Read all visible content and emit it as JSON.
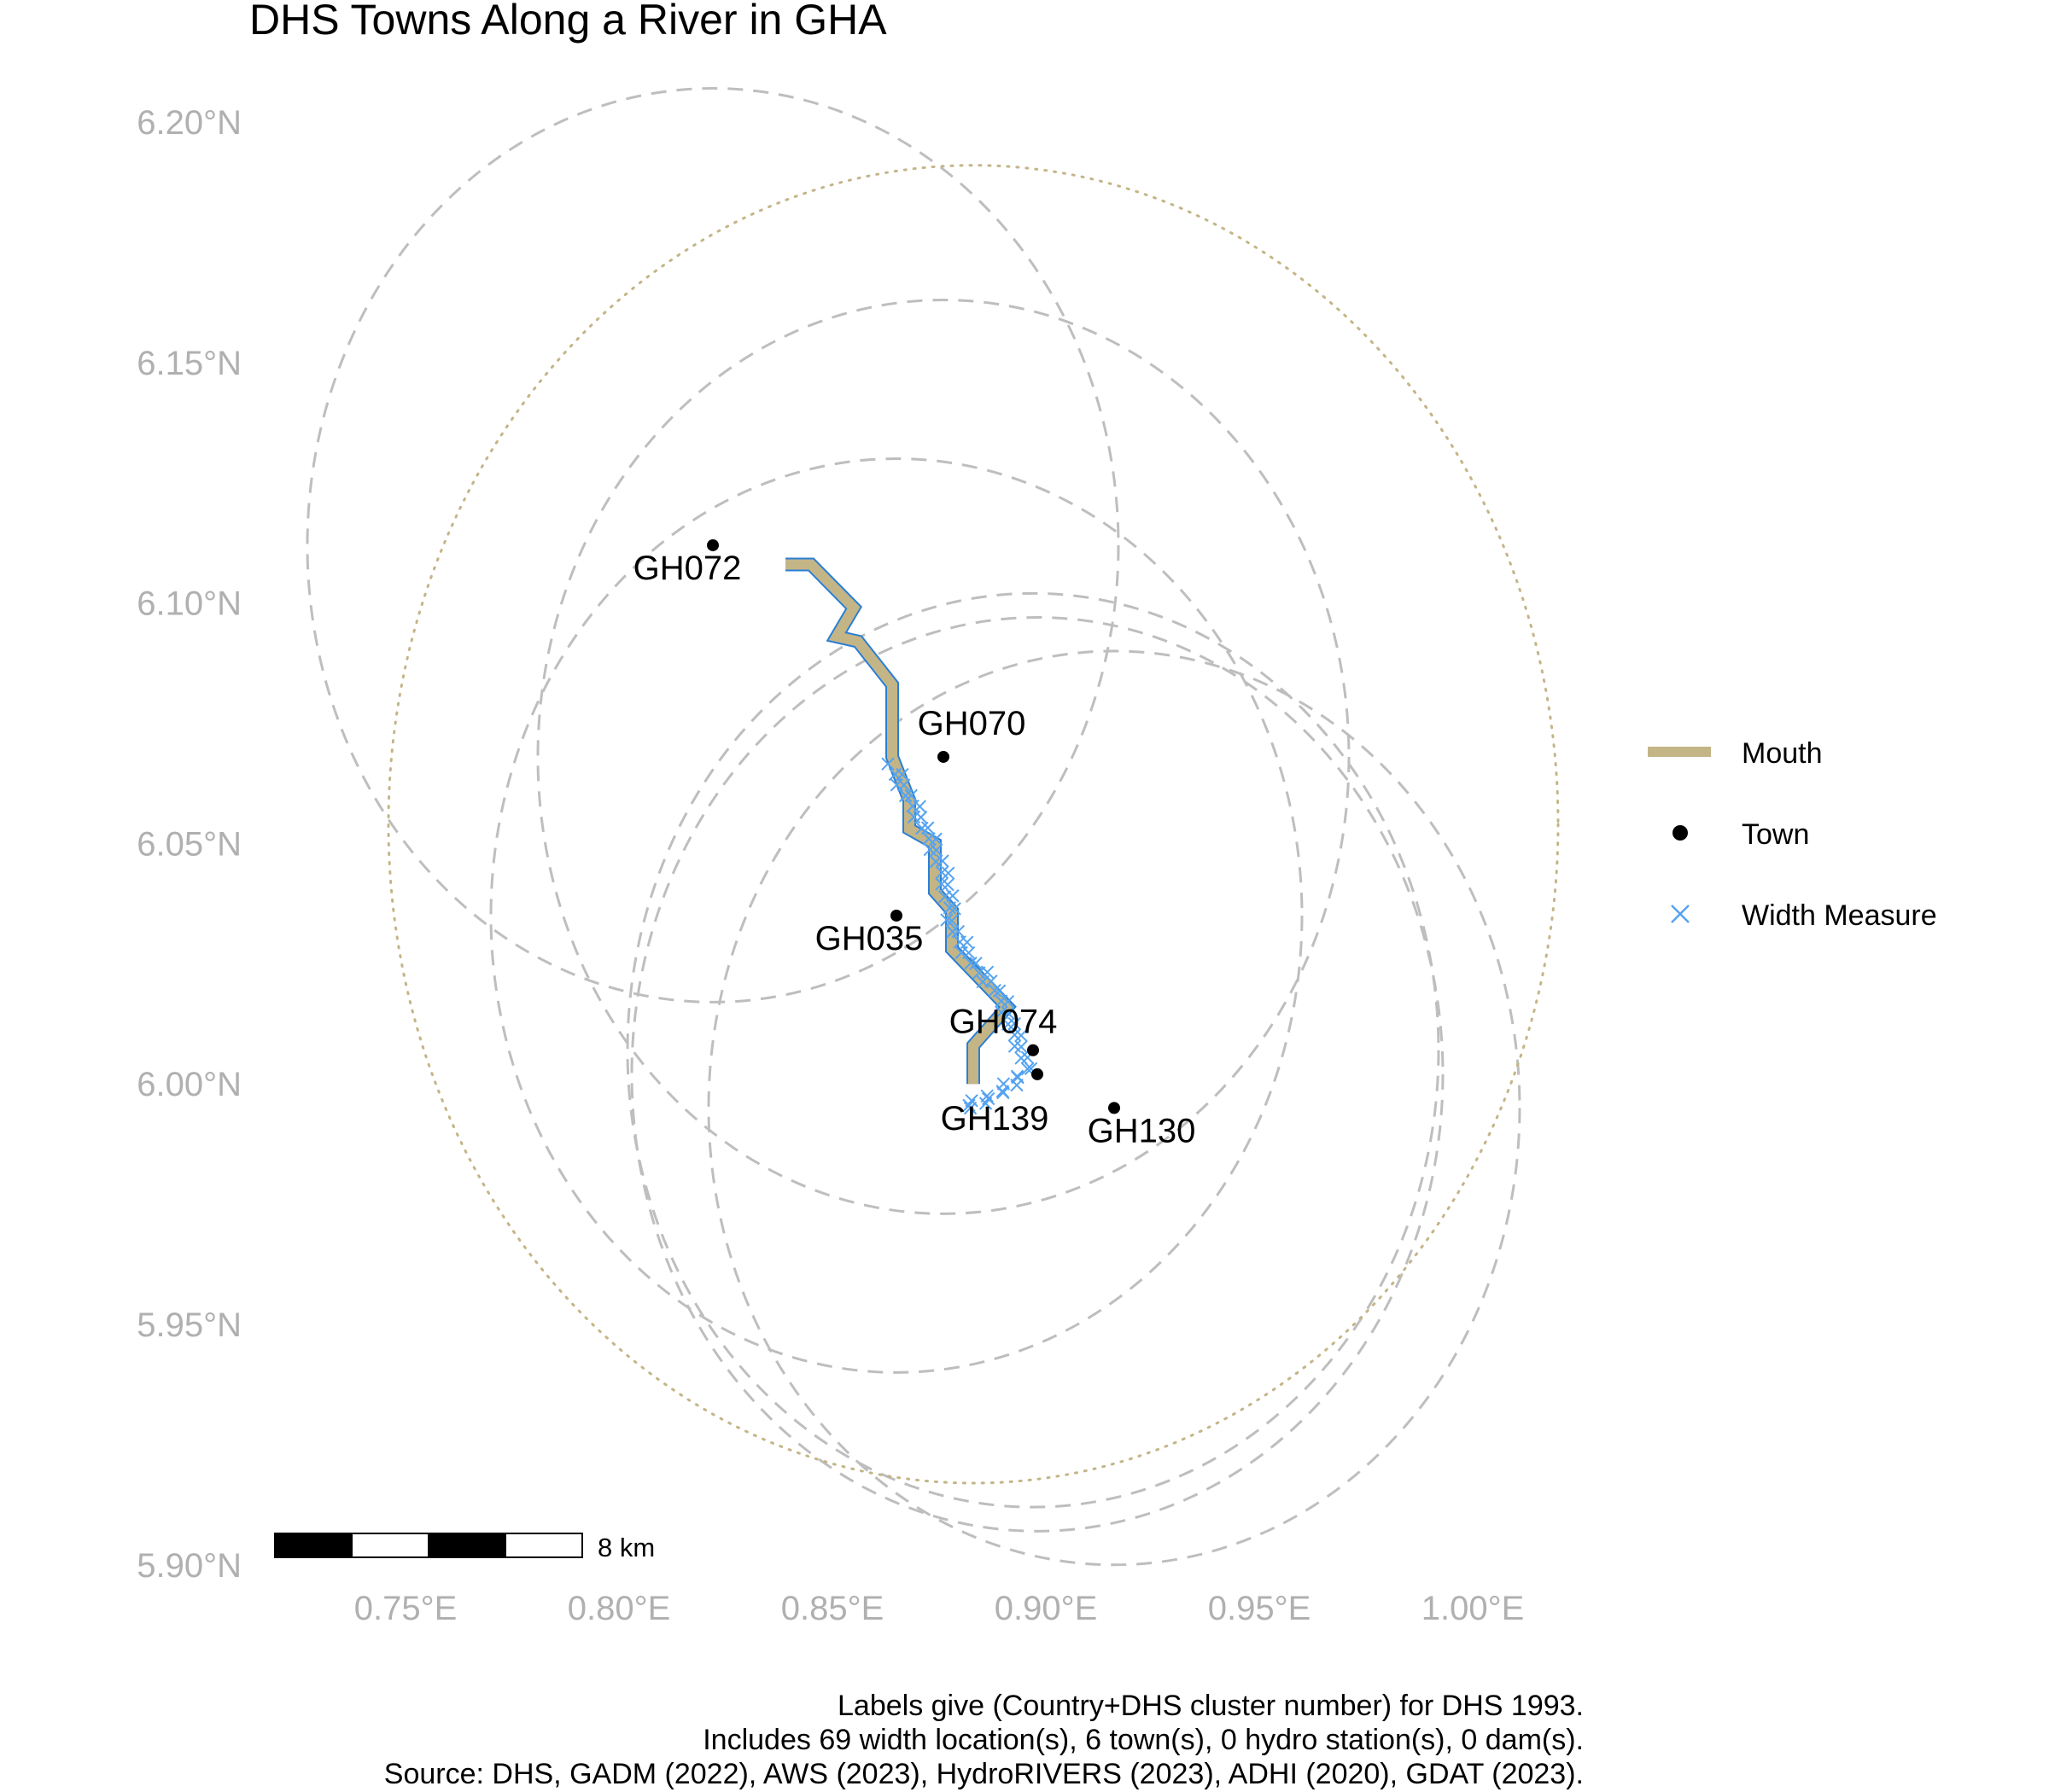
{
  "title": "DHS Towns Along a River in GHA",
  "map": {
    "type": "map",
    "x_axis_labels": [
      "0.75°E",
      "0.80°E",
      "0.85°E",
      "0.90°E",
      "0.95°E",
      "1.00°E"
    ],
    "x_ticks": [
      0.75,
      0.8,
      0.85,
      0.9,
      0.95,
      1.0
    ],
    "y_axis_labels": [
      "6.20°N",
      "6.15°N",
      "6.10°N",
      "6.05°N",
      "6.00°N",
      "5.95°N",
      "5.90°N"
    ],
    "y_ticks": [
      6.2,
      6.15,
      6.1,
      6.05,
      6.0,
      5.95,
      5.9
    ],
    "xlim": [
      0.7,
      1.045
    ],
    "ylim": [
      5.9,
      6.2
    ],
    "river_mouth_line": [
      [
        0.839,
        6.108
      ],
      [
        0.845,
        6.108
      ],
      [
        0.855,
        6.099
      ],
      [
        0.851,
        6.093
      ],
      [
        0.856,
        6.092
      ],
      [
        0.864,
        6.083
      ],
      [
        0.864,
        6.068
      ],
      [
        0.868,
        6.059
      ],
      [
        0.868,
        6.053
      ],
      [
        0.874,
        6.05
      ],
      [
        0.874,
        6.04
      ],
      [
        0.878,
        6.036
      ],
      [
        0.878,
        6.028
      ],
      [
        0.891,
        6.016
      ],
      [
        0.883,
        6.008
      ],
      [
        0.883,
        6.0
      ]
    ],
    "width_measures_path": [
      [
        0.864,
        6.066
      ],
      [
        0.869,
        6.058
      ],
      [
        0.874,
        6.049
      ],
      [
        0.877,
        6.041
      ],
      [
        0.878,
        6.033
      ],
      [
        0.883,
        6.025
      ],
      [
        0.889,
        6.019
      ],
      [
        0.893,
        6.01
      ],
      [
        0.896,
        6.003
      ],
      [
        0.889,
        5.998
      ],
      [
        0.881,
        5.995
      ]
    ],
    "width_measure_count": 69,
    "towns": [
      {
        "id": "GH072",
        "x": 0.822,
        "y": 6.112
      },
      {
        "id": "GH070",
        "x": 0.876,
        "y": 6.068
      },
      {
        "id": "GH035",
        "x": 0.865,
        "y": 6.035
      },
      {
        "id": "GH074",
        "x": 0.897,
        "y": 6.007
      },
      {
        "id": "GH139",
        "x": 0.898,
        "y": 6.002
      },
      {
        "id": "GH130",
        "x": 0.916,
        "y": 5.995
      }
    ],
    "dashed_buffers": [
      {
        "cx": 0.822,
        "cy": 6.112,
        "r": 0.095
      },
      {
        "cx": 0.876,
        "cy": 6.068,
        "r": 0.095
      },
      {
        "cx": 0.865,
        "cy": 6.035,
        "r": 0.095
      },
      {
        "cx": 0.897,
        "cy": 6.007,
        "r": 0.095
      },
      {
        "cx": 0.898,
        "cy": 6.002,
        "r": 0.095
      },
      {
        "cx": 0.916,
        "cy": 5.995,
        "r": 0.095
      }
    ],
    "dotted_buffer": {
      "cx": 0.883,
      "cy": 6.054,
      "r": 0.137
    },
    "colors": {
      "mouth": "#c4b587",
      "river_outline": "#2a7fd4",
      "width_measure": "#55a3f0",
      "town": "#000000",
      "buffer": "#bebebe",
      "dotted_buffer": "#c4b587"
    }
  },
  "legend": {
    "items": [
      {
        "label": "Mouth",
        "symbol": "line",
        "color": "#c4b587"
      },
      {
        "label": "Town",
        "symbol": "dot",
        "color": "#000000"
      },
      {
        "label": "Width Measure",
        "symbol": "cross",
        "color": "#55a3f0"
      }
    ]
  },
  "scale_bar": {
    "label": "8 km"
  },
  "caption": {
    "line1": "Labels give (Country+DHS cluster number) for DHS 1993.",
    "line2": "Includes 69 width location(s), 6 town(s), 0 hydro station(s), 0 dam(s).",
    "line3": "Source: DHS, GADM (2022), AWS (2023), HydroRIVERS (2023), ADHI (2020), GDAT (2023)."
  }
}
